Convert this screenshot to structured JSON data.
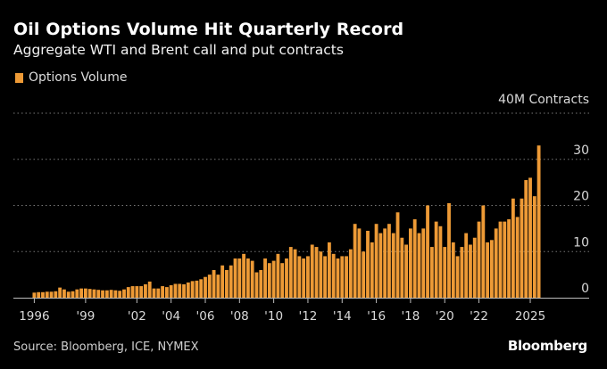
{
  "header": {
    "title": "Oil Options Volume Hit Quarterly Record",
    "subtitle": "Aggregate WTI and Brent call and put contracts"
  },
  "legend": {
    "label": "Options Volume"
  },
  "colors": {
    "bar": "#ed9a36",
    "background": "#000000",
    "grid": "#777777",
    "text": "#d9d9d9"
  },
  "footer": {
    "source": "Source: Bloomberg, ICE, NYMEX",
    "brand": "Bloomberg"
  },
  "chart_data": {
    "type": "bar",
    "title": "Oil Options Volume Hit Quarterly Record",
    "subtitle": "Aggregate WTI and Brent call and put contracts",
    "unit_label": "40M Contracts",
    "ylim": [
      0,
      40
    ],
    "yticks": [
      0,
      10,
      20,
      30
    ],
    "grid": true,
    "legend_position": "top-left",
    "x_tick_labels": [
      {
        "label": "1996",
        "index": 0
      },
      {
        "label": "'99",
        "index": 12
      },
      {
        "label": "'02",
        "index": 24
      },
      {
        "label": "'04",
        "index": 32
      },
      {
        "label": "'06",
        "index": 40
      },
      {
        "label": "'08",
        "index": 48
      },
      {
        "label": "'10",
        "index": 56
      },
      {
        "label": "'12",
        "index": 64
      },
      {
        "label": "'14",
        "index": 72
      },
      {
        "label": "'16",
        "index": 80
      },
      {
        "label": "'18",
        "index": 88
      },
      {
        "label": "'20",
        "index": 96
      },
      {
        "label": "'22",
        "index": 104
      },
      {
        "label": "2025",
        "index": 116
      }
    ],
    "series": [
      {
        "name": "Options Volume",
        "values": [
          1.1,
          1.2,
          1.2,
          1.3,
          1.3,
          1.4,
          2.2,
          1.8,
          1.3,
          1.4,
          1.8,
          2.0,
          2.0,
          1.9,
          1.8,
          1.7,
          1.6,
          1.6,
          1.7,
          1.6,
          1.5,
          1.8,
          2.3,
          2.5,
          2.5,
          2.5,
          2.9,
          3.5,
          2.0,
          2.0,
          2.5,
          2.3,
          2.7,
          3.0,
          3.0,
          2.9,
          3.3,
          3.6,
          3.7,
          4.0,
          4.5,
          5.0,
          6.0,
          5.0,
          7.0,
          6.0,
          7.0,
          8.5,
          8.5,
          9.5,
          8.5,
          8.0,
          5.5,
          6.0,
          8.5,
          7.5,
          8.0,
          9.5,
          7.5,
          8.5,
          11.0,
          10.5,
          9.0,
          8.5,
          9.0,
          11.5,
          11.0,
          10.0,
          9.0,
          12.0,
          9.5,
          8.5,
          9.0,
          9.0,
          10.5,
          16.0,
          15.0,
          10.0,
          14.5,
          12.0,
          16.0,
          14.0,
          15.0,
          16.0,
          14.0,
          18.5,
          13.0,
          11.5,
          15.0,
          17.0,
          14.0,
          15.0,
          20.0,
          11.0,
          16.5,
          15.5,
          11.0,
          20.5,
          12.0,
          9.0,
          11.0,
          14.0,
          11.5,
          13.0,
          16.5,
          20.0,
          12.0,
          12.5,
          15.0,
          16.5,
          16.5,
          17.0,
          21.5,
          17.5,
          21.5,
          25.5,
          26.0,
          22.0,
          33.0
        ]
      }
    ]
  }
}
